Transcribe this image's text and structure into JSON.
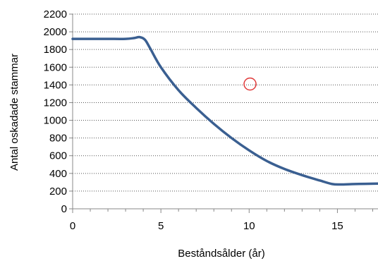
{
  "chart_data": {
    "type": "line",
    "xlabel": "Beståndsålder (år)",
    "ylabel": "Antal oskadade stammar",
    "xlim": [
      0,
      17.3
    ],
    "ylim": [
      0,
      2200
    ],
    "xticks": [
      0,
      5,
      10,
      15
    ],
    "yticks": [
      0,
      200,
      400,
      600,
      800,
      1000,
      1200,
      1400,
      1600,
      1800,
      2000,
      2200
    ],
    "grid": "horizontal dotted",
    "series": [
      {
        "color": "#3a5f91",
        "x": [
          0,
          1,
          2,
          3,
          3.5,
          3.8,
          4.1,
          4.4,
          5,
          6,
          7,
          8,
          9,
          10,
          11,
          12,
          13,
          14,
          14.7,
          15.2,
          16,
          17.3
        ],
        "y": [
          1920,
          1920,
          1920,
          1920,
          1930,
          1940,
          1910,
          1810,
          1600,
          1340,
          1140,
          960,
          800,
          660,
          540,
          450,
          380,
          320,
          280,
          275,
          280,
          285
        ]
      }
    ],
    "annotation_marker": {
      "shape": "circle",
      "x": 10.05,
      "y": 1410,
      "color": "#e03a3a"
    }
  }
}
